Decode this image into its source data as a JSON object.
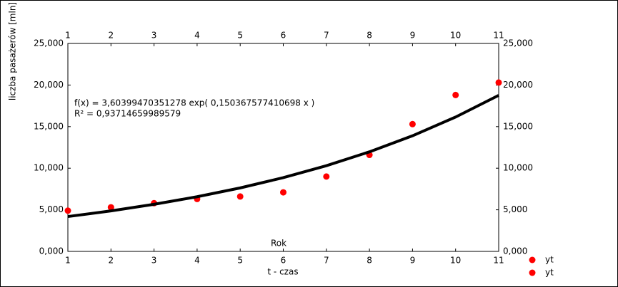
{
  "chart_data": {
    "type": "scatter",
    "y_label": "liczba pasażerów [mln]",
    "x_label": "t - czas",
    "annotations": [
      "f(x) = 3,60399470351278 exp( 0,150367577410698 x )",
      "R² = 0,93714659989579",
      "Rok"
    ],
    "x": [
      1,
      2,
      3,
      4,
      5,
      6,
      7,
      8,
      9,
      10,
      11
    ],
    "series": [
      {
        "name": "yt",
        "color": "#ff0000",
        "values": [
          4.9,
          5.3,
          5.8,
          6.3,
          6.6,
          7.1,
          9.0,
          11.6,
          15.3,
          18.8,
          20.3
        ]
      },
      {
        "name": "yt",
        "color": "#ff0000",
        "line_color": "#000000",
        "values": [
          4.19,
          4.87,
          5.66,
          6.57,
          7.63,
          8.87,
          10.3,
          11.97,
          13.9,
          16.15,
          18.76
        ]
      }
    ],
    "xlim": [
      1,
      11
    ],
    "xticks": [
      1,
      2,
      3,
      4,
      5,
      6,
      7,
      8,
      9,
      10,
      11
    ],
    "ylim": [
      0,
      25
    ],
    "yticks": [
      {
        "value": 0,
        "label": "0,000"
      },
      {
        "value": 5,
        "label": "5,000"
      },
      {
        "value": 10,
        "label": "10,000"
      },
      {
        "value": 15,
        "label": "15,000"
      },
      {
        "value": 20,
        "label": "20,000"
      },
      {
        "value": 25,
        "label": "25,000"
      }
    ],
    "grid": false,
    "legend": "right"
  }
}
